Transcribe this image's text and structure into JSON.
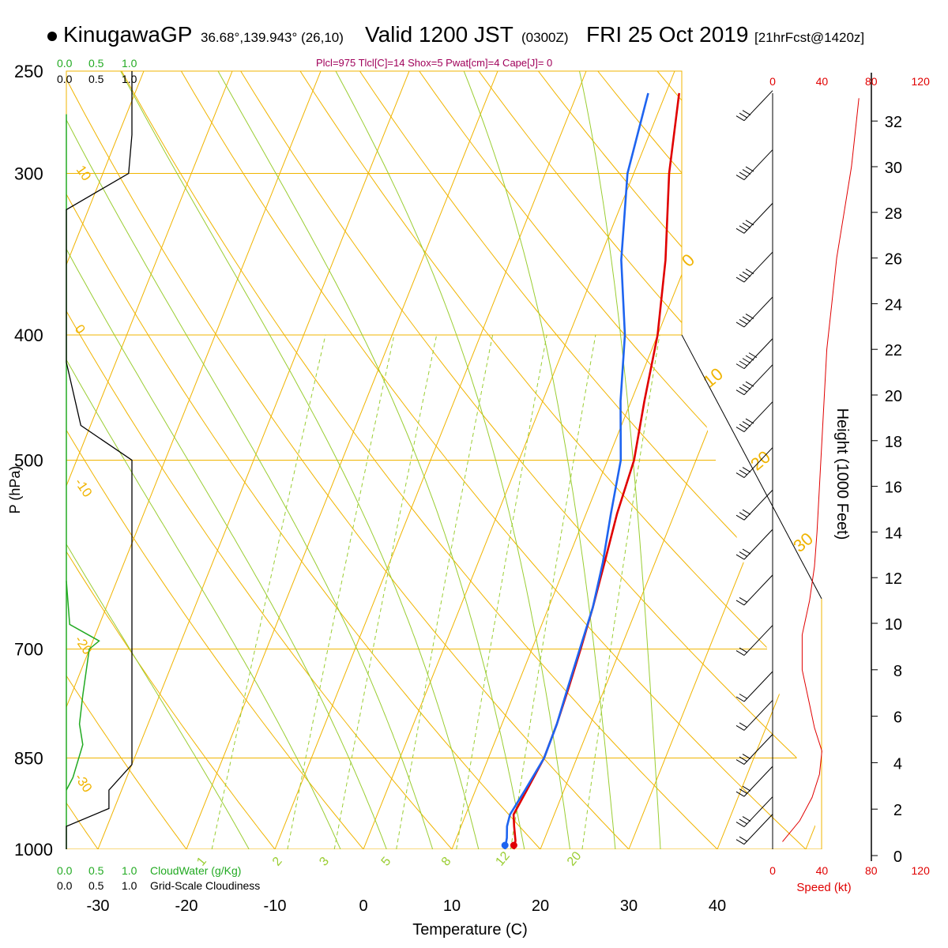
{
  "header": {
    "station": "KinugawaGP",
    "coords": "36.68°,139.943° (26,10)",
    "valid": "Valid 1200 JST",
    "zulu": "(0300Z)",
    "date": "FRI 25 Oct 2019",
    "forecast": "[21hrFcst@1420z]",
    "indices": "Plcl=975 Tlcl[C]=14 Shox=5 Pwat[cm]=4 Cape[J]= 0"
  },
  "colors": {
    "temperature": "#e00000",
    "dewpoint": "#1e64f0",
    "isobar_isotherm": "#f0b400",
    "mixing_ratio": "#9acd32",
    "cloud_water": "#22aa22",
    "speed": "#e00000"
  },
  "chart_data": {
    "type": "line",
    "title": "",
    "xlabel": "Temperature (C)",
    "ylabel": "P (hPa)",
    "y_scale": "log",
    "pressure_ticks": [
      250,
      300,
      400,
      500,
      700,
      850,
      1000
    ],
    "temperature_ticks": [
      -30,
      -20,
      -10,
      0,
      10,
      20,
      30,
      40
    ],
    "series": [
      {
        "role": "temperature",
        "points": [
          [
            17,
            1000
          ],
          [
            16.8,
            985
          ],
          [
            16,
            960
          ],
          [
            15.4,
            940
          ],
          [
            15.8,
            900
          ],
          [
            16.3,
            850
          ],
          [
            16.2,
            800
          ],
          [
            15.9,
            750
          ],
          [
            15.5,
            700
          ],
          [
            15.0,
            650
          ],
          [
            14.3,
            600
          ],
          [
            13.5,
            550
          ],
          [
            13.0,
            500
          ],
          [
            11.5,
            450
          ],
          [
            10.0,
            400
          ],
          [
            7.5,
            350
          ],
          [
            4.0,
            300
          ],
          [
            1.5,
            260
          ]
        ]
      },
      {
        "role": "dewpoint",
        "points": [
          [
            16,
            1000
          ],
          [
            15.7,
            980
          ],
          [
            15.2,
            960
          ],
          [
            15.0,
            940
          ],
          [
            15.6,
            900
          ],
          [
            16.3,
            850
          ],
          [
            16.2,
            800
          ],
          [
            15.8,
            750
          ],
          [
            15.4,
            700
          ],
          [
            15.0,
            650
          ],
          [
            14.1,
            600
          ],
          [
            12.8,
            550
          ],
          [
            11.5,
            500
          ],
          [
            8.8,
            450
          ],
          [
            6.3,
            400
          ],
          [
            2.5,
            350
          ],
          [
            -0.7,
            300
          ],
          [
            -2.0,
            260
          ]
        ]
      }
    ],
    "height_axis": {
      "label": "Height (1000 Feet)",
      "ticks": [
        0,
        2,
        4,
        6,
        8,
        10,
        12,
        14,
        16,
        18,
        20,
        22,
        24,
        26,
        28,
        30,
        32
      ]
    },
    "speed_axis": {
      "label": "Speed (kt)",
      "ticks": [
        "0",
        "40",
        "80",
        "120"
      ],
      "profile_kt_by_kft": [
        [
          0.6,
          8
        ],
        [
          1.5,
          22
        ],
        [
          2.5,
          32
        ],
        [
          3.5,
          38
        ],
        [
          4.5,
          40
        ],
        [
          5.5,
          34
        ],
        [
          6.5,
          30
        ],
        [
          8,
          24
        ],
        [
          9.5,
          24
        ],
        [
          11,
          30
        ],
        [
          12.5,
          34
        ],
        [
          14,
          36
        ],
        [
          16,
          38
        ],
        [
          18,
          40
        ],
        [
          20,
          42
        ],
        [
          22,
          44
        ],
        [
          24,
          48
        ],
        [
          26,
          52
        ],
        [
          28,
          58
        ],
        [
          30,
          64
        ],
        [
          32,
          68
        ],
        [
          33,
          70
        ]
      ]
    },
    "cloud_axis": {
      "ticks": [
        "0.0",
        "0.5",
        "1.0"
      ],
      "cloud_water_label": "CloudWater (g/Kg)",
      "cloudiness_label": "Grid-Scale Cloudiness"
    },
    "cloudiness_by_hpa": [
      [
        250,
        1.0
      ],
      [
        280,
        1.0
      ],
      [
        300,
        0.95
      ],
      [
        320,
        0.0
      ],
      [
        420,
        0.0
      ],
      [
        470,
        0.22
      ],
      [
        500,
        1.0
      ],
      [
        860,
        1.0
      ],
      [
        900,
        0.65
      ],
      [
        930,
        0.65
      ],
      [
        960,
        0.0
      ],
      [
        1000,
        0.0
      ]
    ],
    "cloud_water_by_hpa": [
      [
        620,
        0.0
      ],
      [
        670,
        0.05
      ],
      [
        690,
        0.5
      ],
      [
        700,
        0.35
      ],
      [
        760,
        0.25
      ],
      [
        800,
        0.2
      ],
      [
        830,
        0.25
      ],
      [
        880,
        0.1
      ],
      [
        900,
        0.0
      ]
    ],
    "mixing_ratio_labels": [
      "1",
      "2",
      "3",
      "5",
      "8",
      "12",
      "20"
    ],
    "dry_adiabat_labels": [
      "10",
      "0",
      "-10",
      "-20",
      "-30"
    ],
    "moist_adiabat_labels": [
      "0",
      "10",
      "20",
      "30"
    ],
    "wind_barbs_by_hpa": [
      [
        270,
        30
      ],
      [
        300,
        35
      ],
      [
        330,
        35
      ],
      [
        360,
        40
      ],
      [
        390,
        40
      ],
      [
        420,
        45
      ],
      [
        440,
        40
      ],
      [
        470,
        35
      ],
      [
        510,
        30
      ],
      [
        550,
        30
      ],
      [
        590,
        25
      ],
      [
        640,
        20
      ],
      [
        700,
        15
      ],
      [
        760,
        15
      ],
      [
        800,
        20
      ],
      [
        850,
        25
      ],
      [
        900,
        30
      ],
      [
        950,
        25
      ],
      [
        980,
        15
      ]
    ]
  }
}
